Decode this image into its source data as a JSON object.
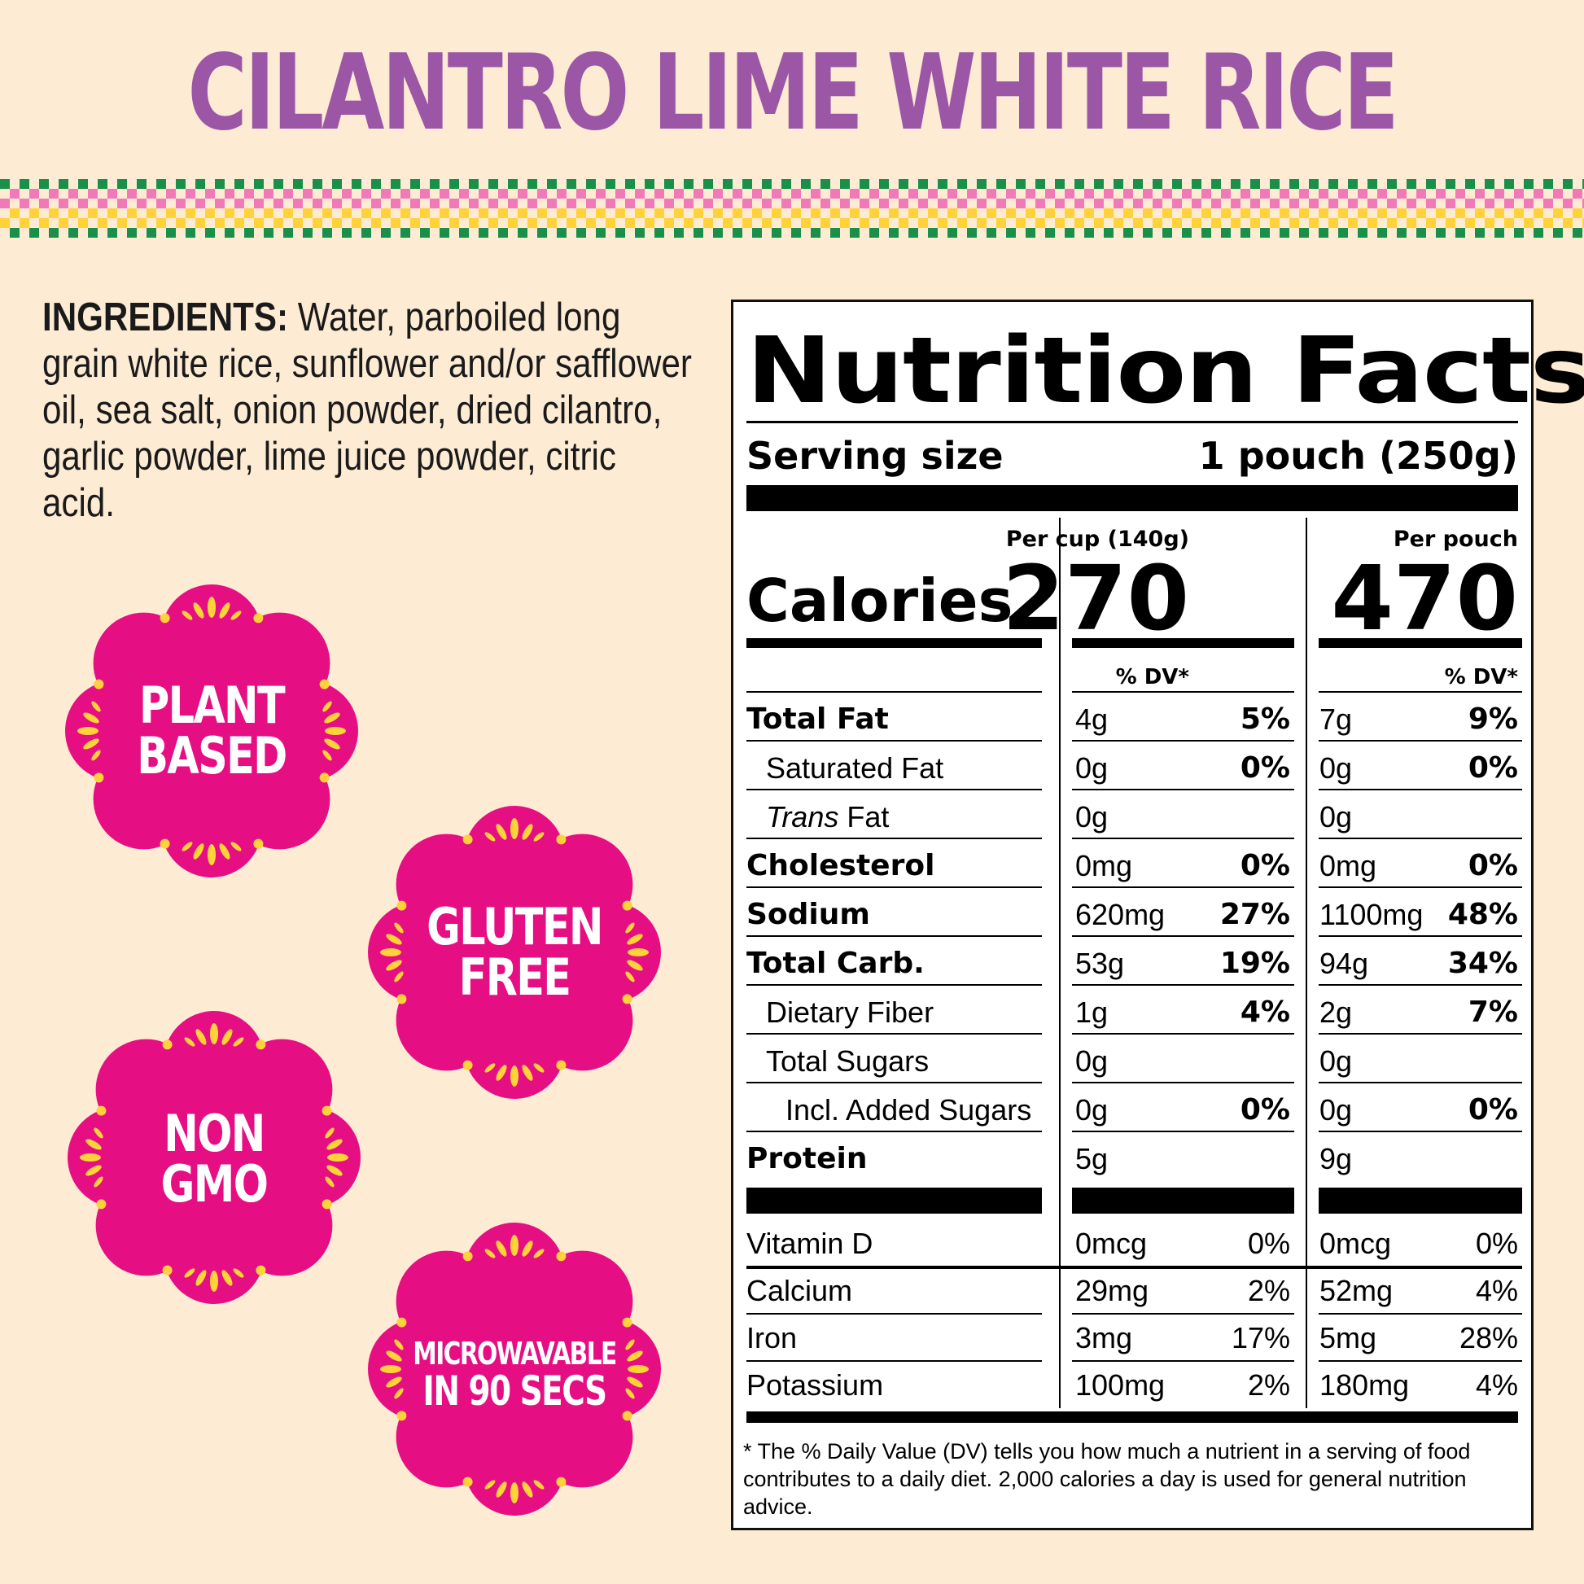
{
  "title": "CILANTRO LIME WHITE RICE",
  "colors": {
    "title": "#9b57a6",
    "background": "#fdebd3",
    "badge": "#e50f83",
    "badge_dots": "#ffd23a",
    "check_green": "#1a8f4a",
    "check_pink": "#f07ab7",
    "check_yellow": "#ffd23a"
  },
  "ingredients": {
    "label": "INGREDIENTS:",
    "text": " Water, parboiled long grain white rice, sunflower and/or safflower oil, sea salt, onion powder, dried cilantro, garlic powder, lime juice powder, citric acid."
  },
  "badges": [
    {
      "line1": "PLANT",
      "line2": "BASED"
    },
    {
      "line1": "GLUTEN",
      "line2": "FREE"
    },
    {
      "line1": "NON",
      "line2": "GMO"
    },
    {
      "line1": "MICROWAVABLE",
      "line2": "IN 90 SECS"
    }
  ],
  "nutrition": {
    "heading": "Nutrition Facts",
    "serving_label": "Serving size",
    "serving_value": "1 pouch (250g)",
    "col1_header": "Per cup (140g)",
    "col2_header": "Per pouch",
    "calories_label": "Calories",
    "calories_cup": "270",
    "calories_pouch": "470",
    "dv_header": "% DV*",
    "rows": [
      {
        "label": "Total Fat",
        "cup_amt": "4g",
        "cup_dv": "5%",
        "pouch_amt": "7g",
        "pouch_dv": "9%"
      },
      {
        "label": "Saturated Fat",
        "cup_amt": "0g",
        "cup_dv": "0%",
        "pouch_amt": "0g",
        "pouch_dv": "0%"
      },
      {
        "label_italic": "Trans",
        "label_rest": " Fat",
        "cup_amt": "0g",
        "cup_dv": "",
        "pouch_amt": "0g",
        "pouch_dv": ""
      },
      {
        "label": "Cholesterol",
        "cup_amt": "0mg",
        "cup_dv": "0%",
        "pouch_amt": "0mg",
        "pouch_dv": "0%"
      },
      {
        "label": "Sodium",
        "cup_amt": "620mg",
        "cup_dv": "27%",
        "pouch_amt": "1100mg",
        "pouch_dv": "48%"
      },
      {
        "label": "Total Carb.",
        "cup_amt": "53g",
        "cup_dv": "19%",
        "pouch_amt": "94g",
        "pouch_dv": "34%"
      },
      {
        "label": "Dietary Fiber",
        "cup_amt": "1g",
        "cup_dv": "4%",
        "pouch_amt": "2g",
        "pouch_dv": "7%"
      },
      {
        "label": "Total Sugars",
        "cup_amt": "0g",
        "cup_dv": "",
        "pouch_amt": "0g",
        "pouch_dv": ""
      },
      {
        "label": "Incl. Added Sugars",
        "cup_amt": "0g",
        "cup_dv": "0%",
        "pouch_amt": "0g",
        "pouch_dv": "0%"
      },
      {
        "label": "Protein",
        "cup_amt": "5g",
        "cup_dv": "",
        "pouch_amt": "9g",
        "pouch_dv": ""
      }
    ],
    "micros": [
      {
        "label": "Vitamin D",
        "cup_amt": "0mcg",
        "cup_dv": "0%",
        "pouch_amt": "0mcg",
        "pouch_dv": "0%"
      },
      {
        "label": "Calcium",
        "cup_amt": "29mg",
        "cup_dv": "2%",
        "pouch_amt": "52mg",
        "pouch_dv": "4%"
      },
      {
        "label": "Iron",
        "cup_amt": "3mg",
        "cup_dv": "17%",
        "pouch_amt": "5mg",
        "pouch_dv": "28%"
      },
      {
        "label": "Potassium",
        "cup_amt": "100mg",
        "cup_dv": "2%",
        "pouch_amt": "180mg",
        "pouch_dv": "4%"
      }
    ],
    "footnote": "* The % Daily Value (DV) tells you how much a nutrient in a serving of food contributes to a daily diet. 2,000 calories a day is used for general nutrition advice."
  }
}
